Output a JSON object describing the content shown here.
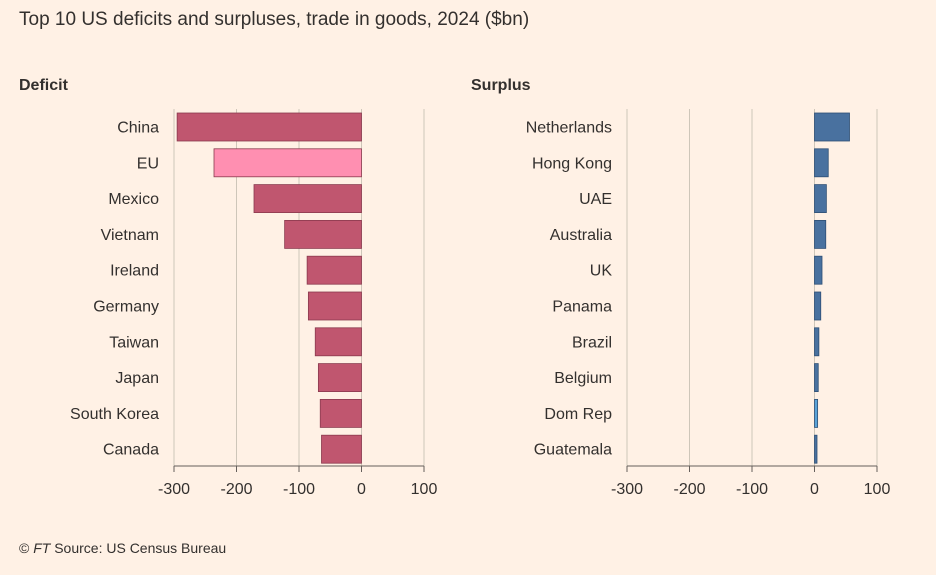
{
  "title": "Top 10 US deficits and surpluses, trade in goods, 2024 ($bn)",
  "source": {
    "copyright": "© ",
    "publisher": "FT",
    "text": " Source: US Census Bureau"
  },
  "colors": {
    "background": "#FFF1E5",
    "deficit": "#C0566F",
    "deficit_highlight": "#FF8FB1",
    "surplus": "#49719F",
    "surplus_highlight": "#5AA3D8",
    "grid": "#CEC6B9"
  },
  "chart_data": [
    {
      "type": "bar",
      "orientation": "horizontal",
      "title": "Deficit",
      "xlim": [
        -300,
        100
      ],
      "ticks": [
        -300,
        -200,
        -100,
        0,
        100
      ],
      "tick_labels": [
        "-300",
        "-200",
        "-100",
        "0",
        "100"
      ],
      "grid": true,
      "categories": [
        "China",
        "EU",
        "Mexico",
        "Vietnam",
        "Ireland",
        "Germany",
        "Taiwan",
        "Japan",
        "South Korea",
        "Canada"
      ],
      "values": [
        -295,
        -236,
        -172,
        -123,
        -87,
        -85,
        -74,
        -69,
        -66,
        -64
      ],
      "highlight": "EU"
    },
    {
      "type": "bar",
      "orientation": "horizontal",
      "title": "Surplus",
      "xlim": [
        -300,
        100
      ],
      "ticks": [
        -300,
        -200,
        -100,
        0,
        100
      ],
      "tick_labels": [
        "-300",
        "-200",
        "-100",
        "0",
        "100"
      ],
      "grid": true,
      "categories": [
        "Netherlands",
        "Hong Kong",
        "UAE",
        "Australia",
        "UK",
        "Panama",
        "Brazil",
        "Belgium",
        "Dom Rep",
        "Guatemala"
      ],
      "values": [
        56,
        22,
        19,
        18,
        12,
        10,
        7,
        6,
        5,
        4
      ],
      "highlight": "Dom Rep"
    }
  ]
}
